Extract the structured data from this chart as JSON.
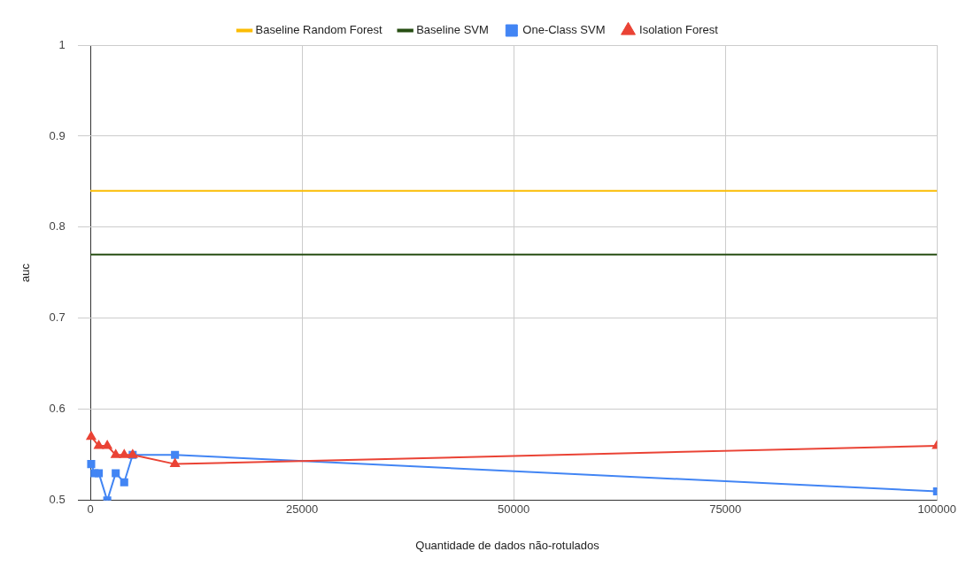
{
  "chart_data": {
    "type": "line",
    "xlabel": "Quantidade de dados não-rotulados",
    "ylabel": "auc",
    "xlim": [
      -1500,
      100000
    ],
    "xticks": [
      0,
      25000,
      50000,
      75000,
      100000
    ],
    "ylim": [
      0.5,
      1
    ],
    "yticks": [
      0.5,
      0.6,
      0.7,
      0.8,
      0.9,
      1
    ],
    "grid": true,
    "legend": "top",
    "series": [
      {
        "name": "Baseline Random Forest",
        "color": "#fbbc04",
        "x": [
          0,
          100000
        ],
        "values": [
          0.84,
          0.84
        ],
        "marker": "none"
      },
      {
        "name": "Baseline SVM",
        "color": "#274e13",
        "x": [
          0,
          100000
        ],
        "values": [
          0.77,
          0.77
        ],
        "marker": "none"
      },
      {
        "name": "One-Class SVM",
        "color": "#4285f4",
        "x": [
          100,
          500,
          1000,
          2000,
          3000,
          4000,
          5000,
          10000,
          100000
        ],
        "values": [
          0.54,
          0.53,
          0.53,
          0.5,
          0.53,
          0.52,
          0.55,
          0.55,
          0.51
        ],
        "marker": "square"
      },
      {
        "name": "Isolation Forest",
        "color": "#ea4335",
        "x": [
          100,
          1000,
          2000,
          3000,
          4000,
          5000,
          10000,
          100000
        ],
        "values": [
          0.57,
          0.56,
          0.56,
          0.55,
          0.55,
          0.55,
          0.54,
          0.56
        ],
        "marker": "triangle"
      }
    ]
  }
}
